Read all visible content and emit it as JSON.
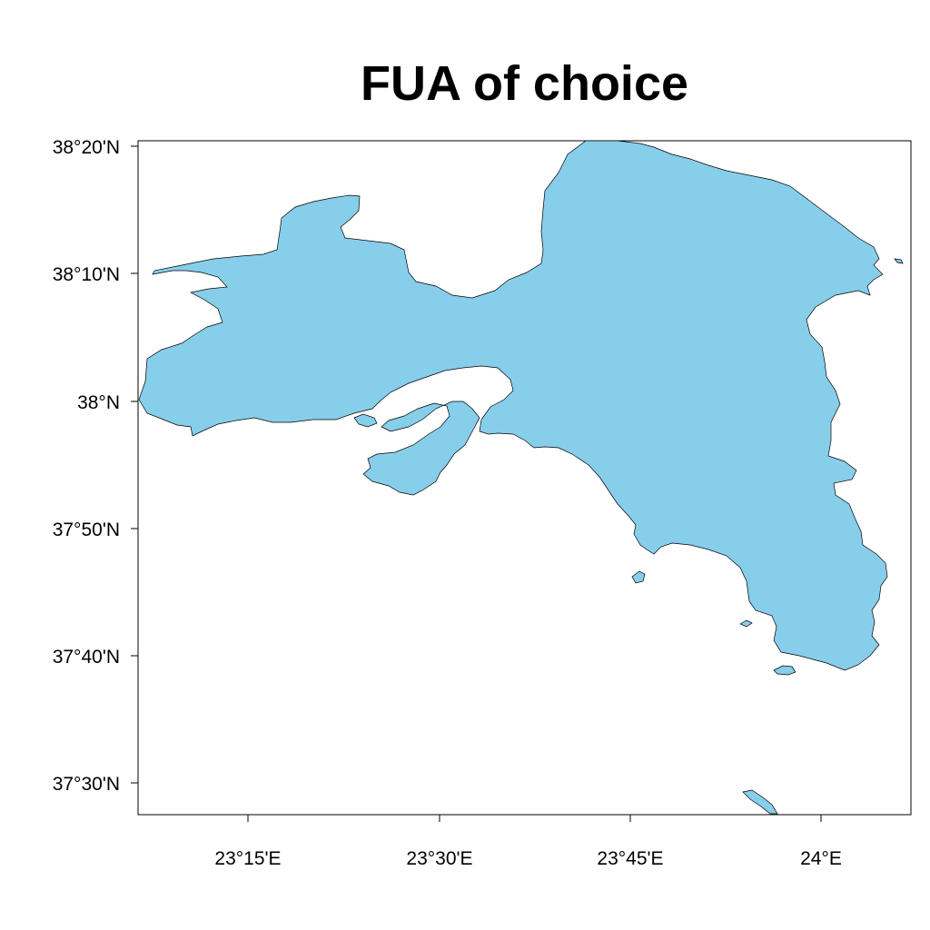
{
  "title": "FUA of choice",
  "map": {
    "land_color": "#87ceeb",
    "outline_color": "#000000",
    "lat_ticks": [
      "38°20'N",
      "38°10'N",
      "38°N",
      "37°50'N",
      "37°40'N",
      "37°30'N"
    ],
    "lon_ticks": [
      "23°15'E",
      "23°30'E",
      "23°45'E",
      "24°E"
    ],
    "features": [
      "mainland-attica",
      "salamis-island",
      "small-islet-west",
      "small-islet-south",
      "small-islet-cape",
      "makronisos-island-tip"
    ]
  }
}
